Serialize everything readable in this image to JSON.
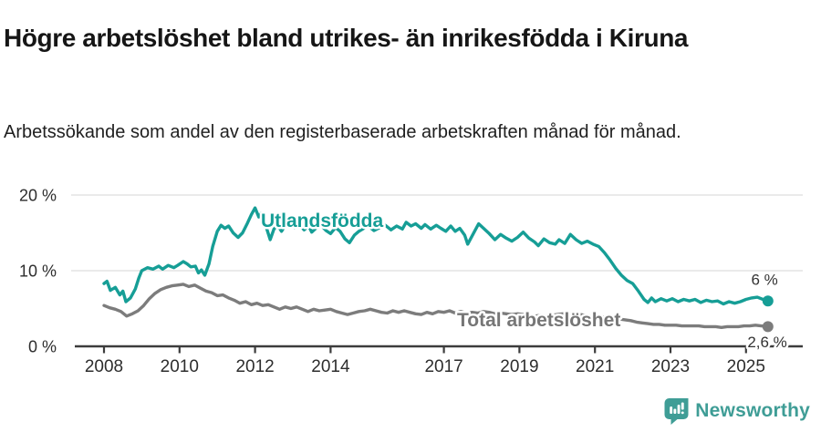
{
  "header": {
    "title": "Högre arbetslöshet bland utrikes- än inrikesfödda i Kiruna",
    "subtitle": "Arbetssökande som andel av den registerbaserade arbetskraften månad för månad."
  },
  "footer": {
    "brand": "Newsworthy",
    "logo_icon": "bar-chart-speech-bubble-icon"
  },
  "colors": {
    "foreign_born_line": "#169e96",
    "total_line": "#7c7c7c",
    "total_label": "#767676",
    "grid": "#dddddd",
    "axis": "#3c3c3c",
    "tick_text": "#2d2d2d",
    "end_label_text": "#333333",
    "brand_teal": "#3f9d96"
  },
  "chart_data": {
    "type": "line",
    "title": "Högre arbetslöshet bland utrikes- än inrikesfödda i Kiruna",
    "subtitle": "Arbetssökande som andel av den registerbaserade arbetskraften månad för månad.",
    "unit": "%",
    "grid": "horizontal",
    "legend_position": "inline-labels",
    "x_axis": {
      "range": [
        2007.3,
        2026.6
      ],
      "ticks": [
        {
          "value": 2008,
          "label": "2008"
        },
        {
          "value": 2010,
          "label": "2010"
        },
        {
          "value": 2012,
          "label": "2012"
        },
        {
          "value": 2014,
          "label": "2014"
        },
        {
          "value": 2017,
          "label": "2017"
        },
        {
          "value": 2019,
          "label": "2019"
        },
        {
          "value": 2021,
          "label": "2021"
        },
        {
          "value": 2023,
          "label": "2023"
        },
        {
          "value": 2025,
          "label": "2025"
        }
      ]
    },
    "y_axis": {
      "range": [
        0,
        22.6
      ],
      "ticks": [
        {
          "value": 0,
          "label": "0 %"
        },
        {
          "value": 10,
          "label": "10 %"
        },
        {
          "value": 20,
          "label": "20 %"
        }
      ]
    },
    "series": [
      {
        "name": "Utlandsfödda",
        "color": "#169e96",
        "end_label": "6 %",
        "end_value": 6.0,
        "points": [
          [
            2008.0,
            8.3
          ],
          [
            2008.08,
            8.6
          ],
          [
            2008.17,
            7.4
          ],
          [
            2008.3,
            7.8
          ],
          [
            2008.42,
            6.8
          ],
          [
            2008.5,
            7.3
          ],
          [
            2008.58,
            5.9
          ],
          [
            2008.7,
            6.4
          ],
          [
            2008.83,
            7.6
          ],
          [
            2008.92,
            9.0
          ],
          [
            2009.0,
            10.0
          ],
          [
            2009.15,
            10.4
          ],
          [
            2009.3,
            10.2
          ],
          [
            2009.45,
            10.6
          ],
          [
            2009.55,
            10.2
          ],
          [
            2009.7,
            10.7
          ],
          [
            2009.85,
            10.4
          ],
          [
            2009.95,
            10.7
          ],
          [
            2010.1,
            11.2
          ],
          [
            2010.2,
            10.9
          ],
          [
            2010.3,
            10.5
          ],
          [
            2010.42,
            10.6
          ],
          [
            2010.5,
            9.7
          ],
          [
            2010.58,
            10.1
          ],
          [
            2010.67,
            9.4
          ],
          [
            2010.78,
            10.9
          ],
          [
            2010.88,
            13.2
          ],
          [
            2011.0,
            15.2
          ],
          [
            2011.1,
            16.0
          ],
          [
            2011.2,
            15.6
          ],
          [
            2011.3,
            15.9
          ],
          [
            2011.42,
            15.0
          ],
          [
            2011.55,
            14.4
          ],
          [
            2011.67,
            15.0
          ],
          [
            2011.8,
            16.3
          ],
          [
            2011.9,
            17.4
          ],
          [
            2012.0,
            18.3
          ],
          [
            2012.1,
            17.1
          ],
          [
            2012.17,
            17.6
          ],
          [
            2012.28,
            16.0
          ],
          [
            2012.4,
            14.1
          ],
          [
            2012.5,
            15.5
          ],
          [
            2012.6,
            16.0
          ],
          [
            2012.7,
            15.2
          ],
          [
            2012.8,
            16.0
          ],
          [
            2012.92,
            16.3
          ],
          [
            2013.05,
            15.7
          ],
          [
            2013.17,
            16.1
          ],
          [
            2013.3,
            15.4
          ],
          [
            2013.42,
            15.9
          ],
          [
            2013.5,
            15.1
          ],
          [
            2013.63,
            15.7
          ],
          [
            2013.75,
            16.0
          ],
          [
            2013.88,
            15.3
          ],
          [
            2014.0,
            14.9
          ],
          [
            2014.13,
            15.7
          ],
          [
            2014.25,
            15.2
          ],
          [
            2014.38,
            14.2
          ],
          [
            2014.5,
            13.7
          ],
          [
            2014.63,
            14.7
          ],
          [
            2014.75,
            15.2
          ],
          [
            2014.88,
            15.6
          ],
          [
            2015.0,
            15.9
          ],
          [
            2015.15,
            15.3
          ],
          [
            2015.3,
            15.7
          ],
          [
            2015.45,
            16.0
          ],
          [
            2015.6,
            15.4
          ],
          [
            2015.75,
            15.9
          ],
          [
            2015.9,
            15.5
          ],
          [
            2016.0,
            16.4
          ],
          [
            2016.13,
            15.9
          ],
          [
            2016.25,
            16.2
          ],
          [
            2016.4,
            15.6
          ],
          [
            2016.5,
            16.1
          ],
          [
            2016.65,
            15.5
          ],
          [
            2016.8,
            16.0
          ],
          [
            2016.92,
            15.6
          ],
          [
            2017.05,
            15.2
          ],
          [
            2017.18,
            15.9
          ],
          [
            2017.3,
            15.2
          ],
          [
            2017.42,
            15.6
          ],
          [
            2017.55,
            14.7
          ],
          [
            2017.63,
            13.5
          ],
          [
            2017.78,
            14.9
          ],
          [
            2017.92,
            16.2
          ],
          [
            2018.05,
            15.6
          ],
          [
            2018.2,
            14.9
          ],
          [
            2018.35,
            14.1
          ],
          [
            2018.5,
            14.8
          ],
          [
            2018.65,
            14.3
          ],
          [
            2018.8,
            13.9
          ],
          [
            2018.95,
            14.4
          ],
          [
            2019.1,
            15.1
          ],
          [
            2019.25,
            14.3
          ],
          [
            2019.4,
            13.8
          ],
          [
            2019.5,
            13.3
          ],
          [
            2019.65,
            14.2
          ],
          [
            2019.8,
            13.7
          ],
          [
            2019.95,
            13.5
          ],
          [
            2020.05,
            14.1
          ],
          [
            2020.2,
            13.6
          ],
          [
            2020.35,
            14.8
          ],
          [
            2020.5,
            14.1
          ],
          [
            2020.65,
            13.6
          ],
          [
            2020.8,
            13.9
          ],
          [
            2020.95,
            13.5
          ],
          [
            2021.1,
            13.2
          ],
          [
            2021.25,
            12.4
          ],
          [
            2021.4,
            11.4
          ],
          [
            2021.55,
            10.3
          ],
          [
            2021.7,
            9.4
          ],
          [
            2021.85,
            8.7
          ],
          [
            2022.0,
            8.3
          ],
          [
            2022.15,
            7.3
          ],
          [
            2022.3,
            6.2
          ],
          [
            2022.4,
            5.8
          ],
          [
            2022.5,
            6.4
          ],
          [
            2022.6,
            5.9
          ],
          [
            2022.75,
            6.3
          ],
          [
            2022.9,
            6.0
          ],
          [
            2023.05,
            6.3
          ],
          [
            2023.2,
            5.9
          ],
          [
            2023.35,
            6.2
          ],
          [
            2023.5,
            6.0
          ],
          [
            2023.65,
            6.2
          ],
          [
            2023.8,
            5.8
          ],
          [
            2023.95,
            6.1
          ],
          [
            2024.1,
            5.9
          ],
          [
            2024.25,
            6.0
          ],
          [
            2024.4,
            5.6
          ],
          [
            2024.55,
            5.9
          ],
          [
            2024.7,
            5.7
          ],
          [
            2024.85,
            5.9
          ],
          [
            2025.0,
            6.2
          ],
          [
            2025.15,
            6.4
          ],
          [
            2025.3,
            6.5
          ],
          [
            2025.45,
            6.2
          ],
          [
            2025.58,
            6.0
          ]
        ]
      },
      {
        "name": "Total arbetslöshet",
        "color": "#7c7c7c",
        "end_label": "2,6 %",
        "end_value": 2.6,
        "points": [
          [
            2008.0,
            5.4
          ],
          [
            2008.15,
            5.1
          ],
          [
            2008.3,
            4.9
          ],
          [
            2008.45,
            4.6
          ],
          [
            2008.6,
            4.0
          ],
          [
            2008.75,
            4.3
          ],
          [
            2008.9,
            4.7
          ],
          [
            2009.05,
            5.4
          ],
          [
            2009.2,
            6.3
          ],
          [
            2009.35,
            7.0
          ],
          [
            2009.5,
            7.5
          ],
          [
            2009.65,
            7.8
          ],
          [
            2009.8,
            8.0
          ],
          [
            2009.95,
            8.1
          ],
          [
            2010.1,
            8.2
          ],
          [
            2010.25,
            7.9
          ],
          [
            2010.4,
            8.1
          ],
          [
            2010.55,
            7.7
          ],
          [
            2010.7,
            7.3
          ],
          [
            2010.85,
            7.1
          ],
          [
            2011.0,
            6.7
          ],
          [
            2011.15,
            6.8
          ],
          [
            2011.3,
            6.4
          ],
          [
            2011.45,
            6.1
          ],
          [
            2011.6,
            5.7
          ],
          [
            2011.75,
            5.9
          ],
          [
            2011.9,
            5.5
          ],
          [
            2012.05,
            5.7
          ],
          [
            2012.2,
            5.4
          ],
          [
            2012.35,
            5.5
          ],
          [
            2012.5,
            5.2
          ],
          [
            2012.65,
            4.9
          ],
          [
            2012.8,
            5.2
          ],
          [
            2012.95,
            5.0
          ],
          [
            2013.1,
            5.2
          ],
          [
            2013.25,
            4.9
          ],
          [
            2013.4,
            4.6
          ],
          [
            2013.55,
            4.9
          ],
          [
            2013.7,
            4.7
          ],
          [
            2013.85,
            4.8
          ],
          [
            2014.0,
            4.9
          ],
          [
            2014.15,
            4.6
          ],
          [
            2014.3,
            4.4
          ],
          [
            2014.45,
            4.2
          ],
          [
            2014.6,
            4.4
          ],
          [
            2014.75,
            4.6
          ],
          [
            2014.9,
            4.7
          ],
          [
            2015.05,
            4.9
          ],
          [
            2015.2,
            4.7
          ],
          [
            2015.35,
            4.5
          ],
          [
            2015.5,
            4.4
          ],
          [
            2015.65,
            4.7
          ],
          [
            2015.8,
            4.5
          ],
          [
            2015.95,
            4.7
          ],
          [
            2016.1,
            4.5
          ],
          [
            2016.25,
            4.3
          ],
          [
            2016.4,
            4.2
          ],
          [
            2016.55,
            4.5
          ],
          [
            2016.7,
            4.3
          ],
          [
            2016.85,
            4.6
          ],
          [
            2017.0,
            4.5
          ],
          [
            2017.15,
            4.7
          ],
          [
            2017.3,
            4.4
          ],
          [
            2017.45,
            4.6
          ],
          [
            2017.6,
            4.4
          ],
          [
            2017.75,
            4.5
          ],
          [
            2017.9,
            4.4
          ],
          [
            2018.05,
            4.6
          ],
          [
            2018.2,
            4.5
          ],
          [
            2018.35,
            4.3
          ],
          [
            2018.5,
            4.4
          ],
          [
            2018.65,
            4.3
          ],
          [
            2018.8,
            4.2
          ],
          [
            2018.95,
            4.3
          ],
          [
            2019.1,
            4.2
          ],
          [
            2019.25,
            4.1
          ],
          [
            2019.4,
            4.0
          ],
          [
            2019.55,
            4.1
          ],
          [
            2019.7,
            4.0
          ],
          [
            2019.85,
            4.1
          ],
          [
            2020.0,
            4.2
          ],
          [
            2020.15,
            4.3
          ],
          [
            2020.3,
            4.4
          ],
          [
            2020.45,
            4.3
          ],
          [
            2020.6,
            4.2
          ],
          [
            2020.75,
            4.1
          ],
          [
            2020.9,
            4.0
          ],
          [
            2021.05,
            3.9
          ],
          [
            2021.2,
            3.9
          ],
          [
            2021.35,
            3.8
          ],
          [
            2021.5,
            3.7
          ],
          [
            2021.65,
            3.6
          ],
          [
            2021.8,
            3.5
          ],
          [
            2021.95,
            3.4
          ],
          [
            2022.1,
            3.2
          ],
          [
            2022.25,
            3.1
          ],
          [
            2022.4,
            3.0
          ],
          [
            2022.55,
            2.9
          ],
          [
            2022.7,
            2.9
          ],
          [
            2022.85,
            2.8
          ],
          [
            2023.0,
            2.8
          ],
          [
            2023.15,
            2.8
          ],
          [
            2023.3,
            2.7
          ],
          [
            2023.45,
            2.7
          ],
          [
            2023.6,
            2.7
          ],
          [
            2023.75,
            2.7
          ],
          [
            2023.9,
            2.6
          ],
          [
            2024.05,
            2.6
          ],
          [
            2024.2,
            2.6
          ],
          [
            2024.35,
            2.5
          ],
          [
            2024.5,
            2.6
          ],
          [
            2024.65,
            2.6
          ],
          [
            2024.8,
            2.6
          ],
          [
            2024.95,
            2.7
          ],
          [
            2025.1,
            2.7
          ],
          [
            2025.25,
            2.8
          ],
          [
            2025.4,
            2.7
          ],
          [
            2025.58,
            2.6
          ]
        ]
      }
    ]
  }
}
